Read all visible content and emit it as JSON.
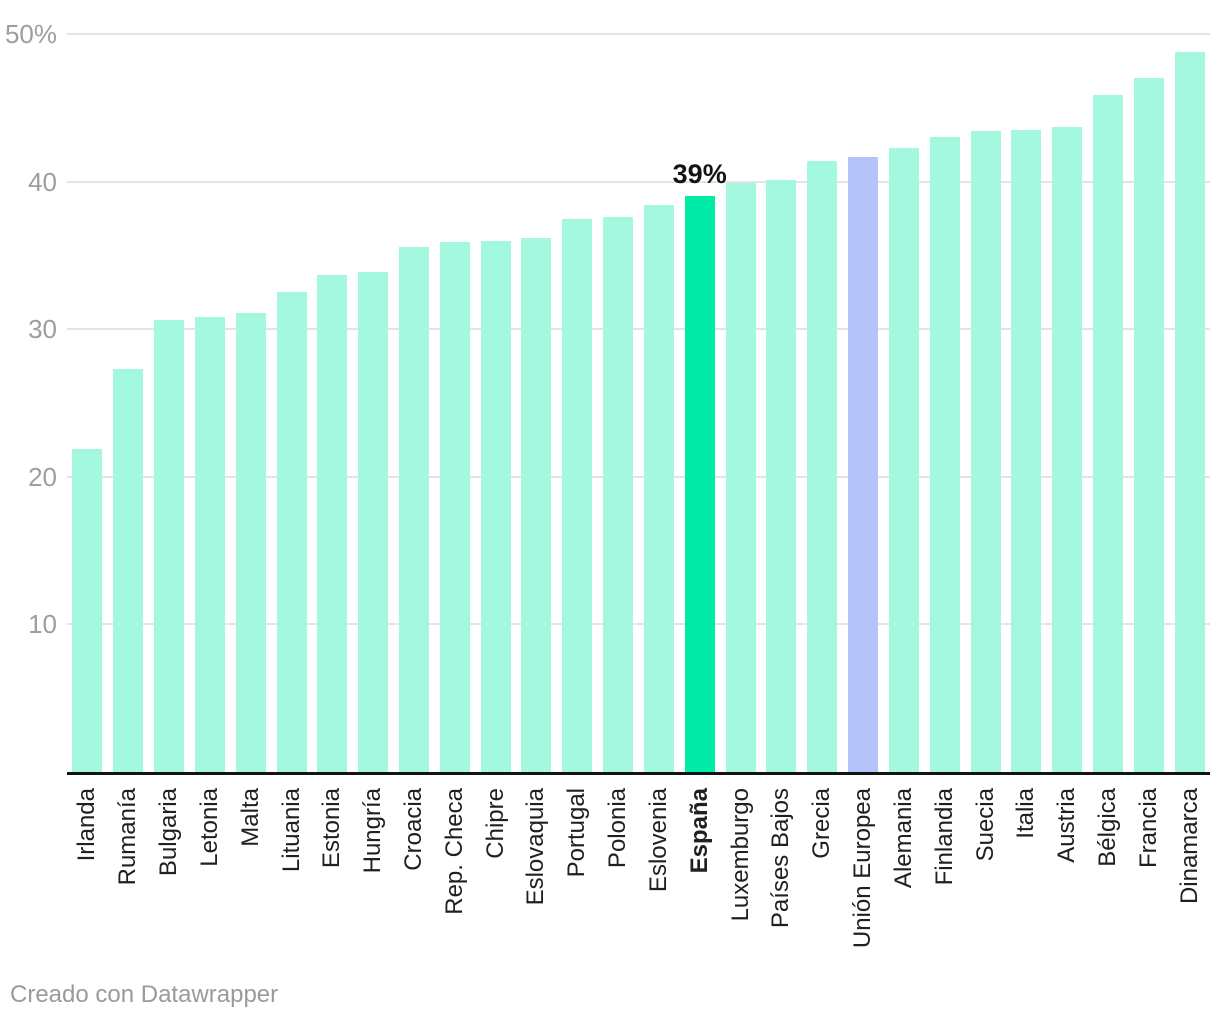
{
  "chart_data": {
    "type": "bar",
    "categories": [
      "Irlanda",
      "Rumanía",
      "Bulgaria",
      "Letonia",
      "Malta",
      "Lituania",
      "Estonia",
      "Hungría",
      "Croacia",
      "Rep. Checa",
      "Chipre",
      "Eslovaquia",
      "Portugal",
      "Polonia",
      "Eslovenia",
      "España",
      "Luxemburgo",
      "Países Bajos",
      "Grecia",
      "Unión Europea",
      "Alemania",
      "Finlandia",
      "Suecia",
      "Italia",
      "Austria",
      "Bélgica",
      "Francia",
      "Dinamarca"
    ],
    "values": [
      21.9,
      27.3,
      30.6,
      30.8,
      31.1,
      32.5,
      33.7,
      33.9,
      35.6,
      35.9,
      36.0,
      36.2,
      37.5,
      37.6,
      38.4,
      39,
      39.9,
      40.1,
      41.4,
      41.7,
      42.3,
      43.0,
      43.4,
      43.5,
      43.7,
      45.9,
      47.0,
      48.8
    ],
    "title": "",
    "xlabel": "",
    "ylabel": "",
    "y_axis": {
      "range": [
        0,
        50
      ],
      "ticks": [
        10,
        20,
        30,
        40,
        50
      ],
      "tick_labels": [
        "10",
        "20",
        "30",
        "40",
        "50%"
      ],
      "grid": true
    },
    "legend": "none",
    "bar_colors": {
      "default": "#a5f8e0",
      "overrides": {
        "España": "#00eba6",
        "Unión Europea": "#b5c3fb"
      }
    },
    "bold_categories": [
      "España"
    ],
    "annotations": [
      {
        "text": "39%",
        "category": "España"
      }
    ]
  },
  "footer": {
    "credit": "Creado con Datawrapper"
  }
}
